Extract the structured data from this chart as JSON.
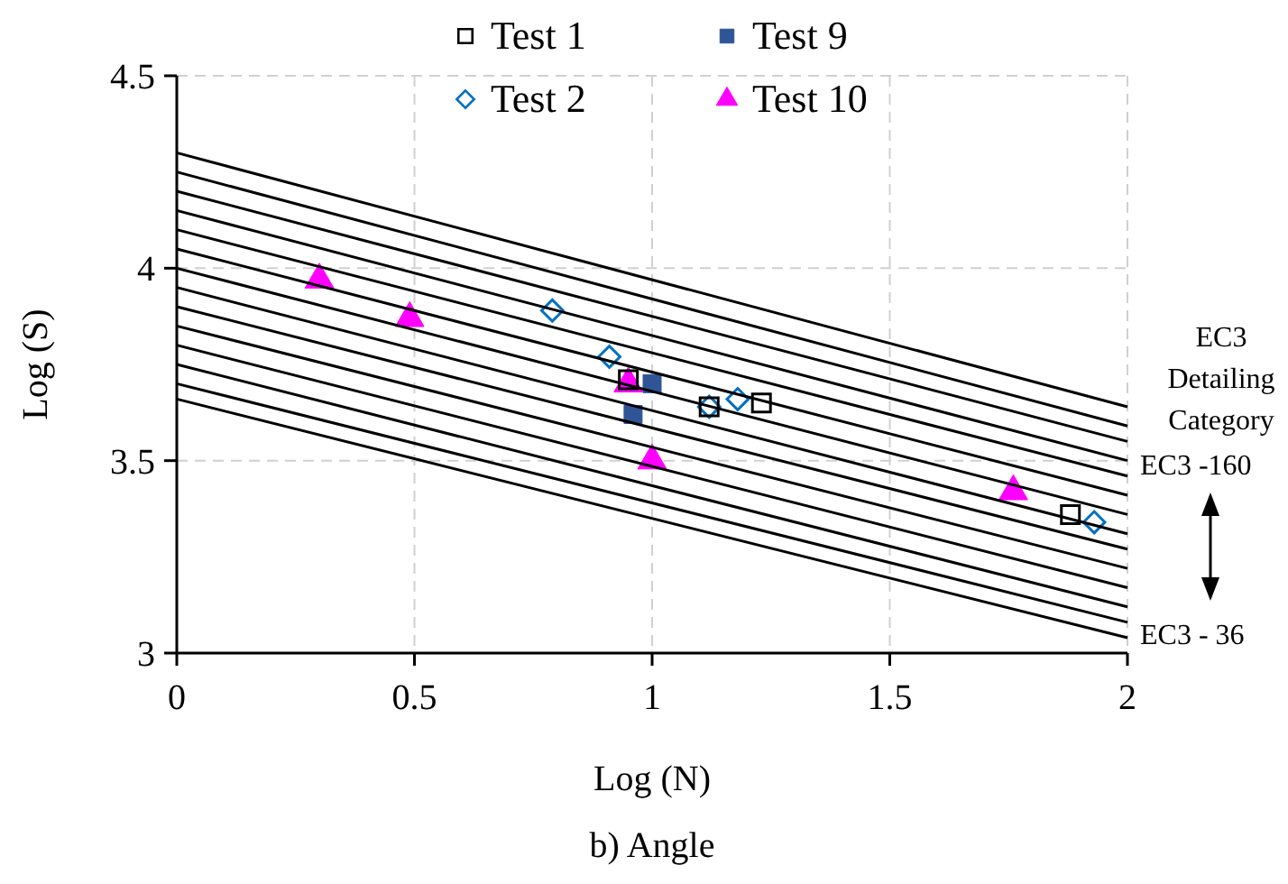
{
  "chart_data": {
    "type": "scatter",
    "title": "b) Angle",
    "xlabel": "Log (N)",
    "ylabel": "Log (S)",
    "xlim": [
      0,
      2
    ],
    "ylim": [
      3,
      4.5
    ],
    "xticks": [
      0,
      0.5,
      1,
      1.5,
      2
    ],
    "yticks": [
      3,
      3.5,
      4,
      4.5
    ],
    "grid": true,
    "legend": "top",
    "annotations": [
      "EC3 Detailing Category",
      "EC3 -160",
      "EC3 - 36"
    ],
    "series": [
      {
        "type": "line",
        "color": "#000000",
        "x": [
          0,
          2
        ],
        "values": [
          4.3,
          3.64
        ]
      },
      {
        "type": "line",
        "color": "#000000",
        "x": [
          0,
          2
        ],
        "values": [
          4.25,
          3.59
        ]
      },
      {
        "type": "line",
        "color": "#000000",
        "x": [
          0,
          2
        ],
        "values": [
          4.2,
          3.55
        ]
      },
      {
        "type": "line",
        "color": "#000000",
        "x": [
          0,
          2
        ],
        "values": [
          4.15,
          3.5
        ]
      },
      {
        "type": "line",
        "color": "#000000",
        "x": [
          0,
          2
        ],
        "values": [
          4.1,
          3.46
        ]
      },
      {
        "type": "line",
        "color": "#000000",
        "x": [
          0,
          2
        ],
        "values": [
          4.05,
          3.41
        ]
      },
      {
        "type": "line",
        "color": "#000000",
        "x": [
          0,
          2
        ],
        "values": [
          4.0,
          3.36
        ]
      },
      {
        "type": "line",
        "color": "#000000",
        "x": [
          0,
          2
        ],
        "values": [
          3.95,
          3.31
        ]
      },
      {
        "type": "line",
        "color": "#000000",
        "x": [
          0,
          2
        ],
        "values": [
          3.9,
          3.27
        ]
      },
      {
        "type": "line",
        "color": "#000000",
        "x": [
          0,
          2
        ],
        "values": [
          3.85,
          3.22
        ]
      },
      {
        "type": "line",
        "color": "#000000",
        "x": [
          0,
          2
        ],
        "values": [
          3.8,
          3.17
        ]
      },
      {
        "type": "line",
        "color": "#000000",
        "x": [
          0,
          2
        ],
        "values": [
          3.75,
          3.12
        ]
      },
      {
        "type": "line",
        "color": "#000000",
        "x": [
          0,
          2
        ],
        "values": [
          3.7,
          3.08
        ]
      },
      {
        "type": "line",
        "color": "#000000",
        "x": [
          0,
          2
        ],
        "values": [
          3.66,
          3.04
        ]
      },
      {
        "name": "Test 1",
        "color": "#000000",
        "marker": "square",
        "x": [
          0.95,
          1.12,
          1.23,
          1.88
        ],
        "values": [
          3.71,
          3.64,
          3.65,
          3.36
        ]
      },
      {
        "name": "Test 2",
        "color": "#0070c0",
        "marker": "diamond",
        "x": [
          0.79,
          0.91,
          1.12,
          1.18,
          1.93
        ],
        "values": [
          3.89,
          3.77,
          3.64,
          3.66,
          3.34
        ]
      },
      {
        "name": "Test 9",
        "color": "#2f5597",
        "marker": "square",
        "x": [
          1.0,
          0.96
        ],
        "values": [
          3.7,
          3.62
        ]
      },
      {
        "name": "Test 10",
        "color": "#ff00ff",
        "marker": "triangle",
        "x": [
          0.3,
          0.49,
          0.95,
          1.0,
          1.76
        ],
        "values": [
          3.97,
          3.87,
          3.7,
          3.5,
          3.42
        ]
      }
    ]
  }
}
